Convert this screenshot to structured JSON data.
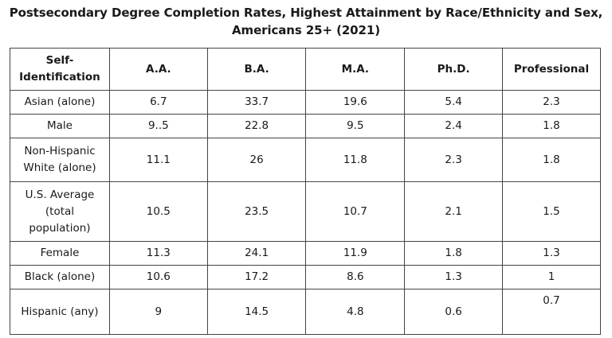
{
  "title": "Postsecondary Degree Completion Rates, Highest Attainment by Race/Ethnicity and Sex, Americans 25+ (2021)",
  "table": {
    "headers": [
      "Self-\nIdentification",
      "A.A.",
      "B.A.",
      "M.A.",
      "Ph.D.",
      "Professional"
    ],
    "rows": [
      {
        "label": "Asian (alone)",
        "values": [
          "6.7",
          "33.7",
          "19.6",
          "5.4",
          "2.3"
        ]
      },
      {
        "label": "Male",
        "values": [
          "9..5",
          "22.8",
          "9.5",
          "2.4",
          "1.8"
        ]
      },
      {
        "label": "Non-Hispanic\nWhite (alone)",
        "values": [
          "11.1",
          "26",
          "11.8",
          "2.3",
          "1.8"
        ]
      },
      {
        "label": "U.S. Average\n(total\npopulation)",
        "values": [
          "10.5",
          "23.5",
          "10.7",
          "2.1",
          "1.5"
        ]
      },
      {
        "label": "Female",
        "values": [
          "11.3",
          "24.1",
          "11.9",
          "1.8",
          "1.3"
        ]
      },
      {
        "label": "Black (alone)",
        "values": [
          "10.6",
          "17.2",
          "8.6",
          "1.3",
          "1"
        ]
      },
      {
        "label": "Hispanic (any)",
        "values": [
          "9",
          "14.5",
          "4.8",
          "0.6",
          "0.7"
        ]
      }
    ]
  }
}
